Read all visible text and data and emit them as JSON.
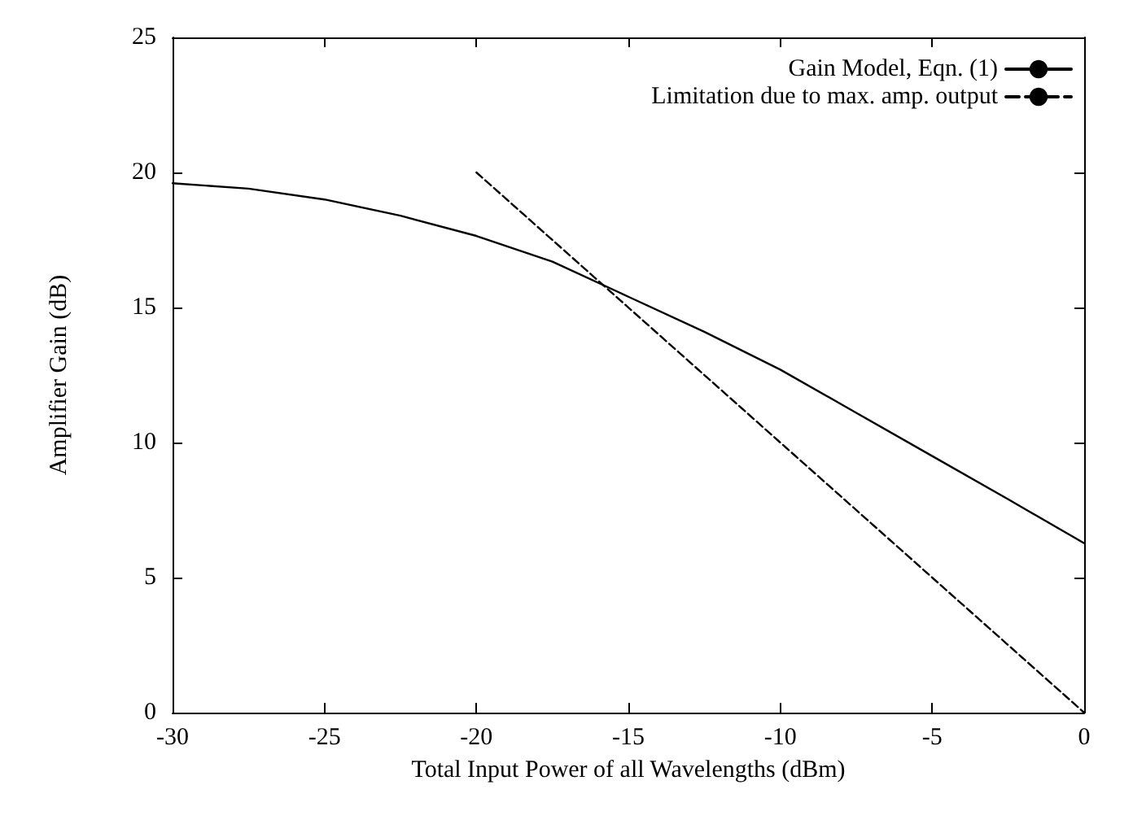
{
  "chart_data": {
    "type": "line",
    "xlabel": "Total Input Power of all Wavelengths (dBm)",
    "ylabel": "Amplifier Gain (dB)",
    "xlim": [
      -30,
      0
    ],
    "xticks": [
      -30,
      -25,
      -20,
      -15,
      -10,
      -5,
      0
    ],
    "ylim": [
      0,
      25
    ],
    "yticks": [
      0,
      5,
      10,
      15,
      20,
      25
    ],
    "grid": false,
    "legend": "top right",
    "marker": "none",
    "series": [
      {
        "name": "Gain Model, Eqn. (1)",
        "color": "#000000",
        "line_style": "solid",
        "x": [
          -30,
          -27.5,
          -25,
          -22.5,
          -20,
          -17.5,
          -15,
          -12.5,
          -10,
          -7.5,
          -5,
          -2.5,
          0
        ],
        "values": [
          19.6,
          19.4,
          19.0,
          18.4,
          17.65,
          16.7,
          15.4,
          14.1,
          12.7,
          11.1,
          9.5,
          7.9,
          6.27
        ]
      },
      {
        "name": "Limitation due to max. amp. output",
        "color": "#000000",
        "line_style": "dashed",
        "x": [
          -20,
          0
        ],
        "values": [
          20,
          0
        ]
      }
    ]
  }
}
